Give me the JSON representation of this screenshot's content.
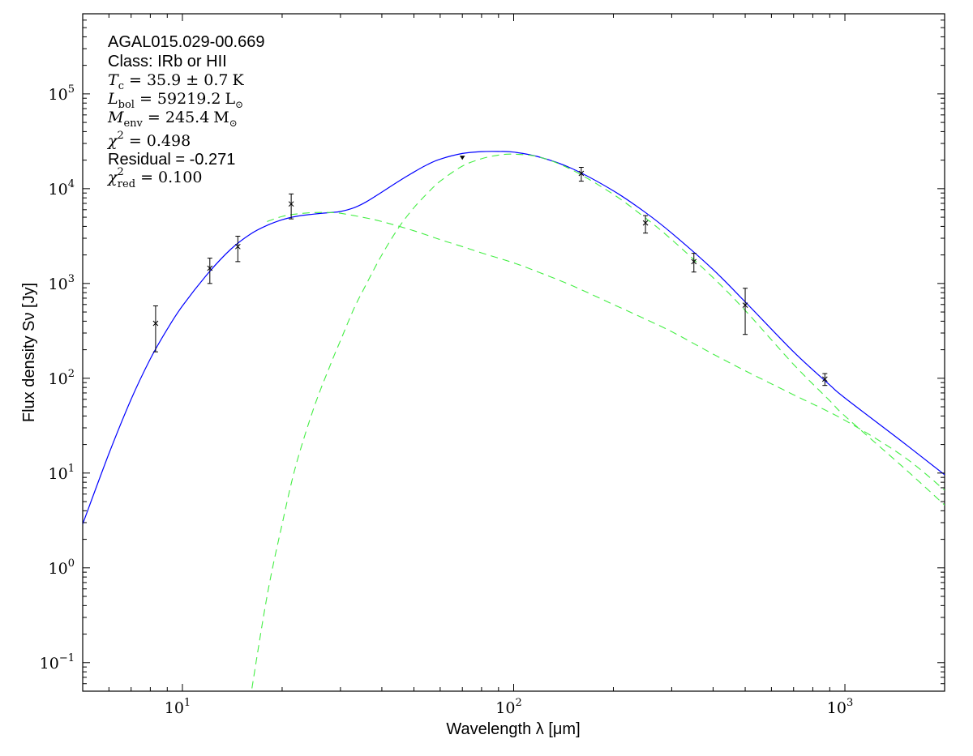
{
  "chart_data": {
    "type": "line",
    "xlabel": "Wavelength λ [μm]",
    "ylabel": "Flux density Sν [Jy]",
    "xscale": "log",
    "yscale": "log",
    "xlim": [
      5,
      2000
    ],
    "ylim": [
      0.05,
      700000
    ],
    "grid": false,
    "x_ticks": [
      {
        "value": 10,
        "base": "10",
        "exp": "1"
      },
      {
        "value": 100,
        "base": "10",
        "exp": "2"
      },
      {
        "value": 1000,
        "base": "10",
        "exp": "3"
      }
    ],
    "y_ticks": [
      {
        "value": 0.1,
        "base": "10",
        "exp": "−1"
      },
      {
        "value": 1,
        "base": "10",
        "exp": "0"
      },
      {
        "value": 10,
        "base": "10",
        "exp": "1"
      },
      {
        "value": 100,
        "base": "10",
        "exp": "2"
      },
      {
        "value": 1000,
        "base": "10",
        "exp": "3"
      },
      {
        "value": 10000,
        "base": "10",
        "exp": "4"
      },
      {
        "value": 100000,
        "base": "10",
        "exp": "5"
      }
    ],
    "annotations": {
      "source": "AGAL015.029-00.669",
      "class": "Class: IRb or HII",
      "tc": {
        "sym": "T",
        "sub": "c",
        "rel": " = 35.9 ± 0.7",
        "unit": "K"
      },
      "lbol": {
        "sym": "L",
        "sub": "bol",
        "rel": " = 59219.2",
        "unit": "L",
        "unit_sub": "⊙"
      },
      "menv": {
        "sym": "M",
        "sub": "env",
        "rel": " = 245.4",
        "unit": "M",
        "unit_sub": "⊙"
      },
      "chi2": {
        "sym": "χ",
        "sup": "2",
        "rel": " = 0.498"
      },
      "residual": "Residual = -0.271",
      "chi2red": {
        "sym": "χ",
        "sup": "2",
        "sub": "red",
        "rel": " = 0.100"
      }
    },
    "series": [
      {
        "style": "solid",
        "color": "#0000ff",
        "x": [
          5,
          6,
          7,
          8,
          9,
          10,
          12,
          14,
          16,
          18,
          20,
          22,
          25,
          28,
          30,
          33,
          36,
          40,
          45,
          50,
          55,
          60,
          70,
          80,
          90,
          100,
          120,
          150,
          200,
          250,
          300,
          400,
          500,
          700,
          900,
          1000,
          1500,
          2000
        ],
        "y": [
          2.9,
          16,
          60,
          160,
          330,
          580,
          1300,
          2300,
          3300,
          4100,
          4700,
          5100,
          5400,
          5600,
          5750,
          6300,
          7300,
          9200,
          12000,
          15000,
          18000,
          20500,
          23500,
          24600,
          24700,
          24300,
          21500,
          16300,
          9500,
          5600,
          3400,
          1400,
          640,
          190,
          85,
          62,
          21,
          9.6
        ]
      },
      {
        "style": "dashed",
        "color": "#44ee44",
        "x": [
          16,
          18,
          20,
          22,
          25,
          28,
          30,
          33,
          36,
          40,
          45,
          50,
          55,
          60,
          70,
          80,
          90,
          100,
          120,
          150,
          200,
          250,
          300,
          400,
          500,
          700,
          900,
          1000,
          1500,
          2000
        ],
        "y": [
          0.04,
          0.5,
          2.9,
          12,
          50,
          140,
          250,
          550,
          1000,
          2000,
          3900,
          6300,
          9000,
          12000,
          17300,
          20700,
          22600,
          23100,
          21500,
          15800,
          8700,
          4900,
          2900,
          1150,
          520,
          140,
          58,
          40,
          11.5,
          4.6
        ]
      },
      {
        "style": "dashed",
        "color": "#44ee44",
        "x": [
          18,
          20,
          22,
          25,
          28,
          30,
          35,
          40,
          50,
          60,
          70,
          80,
          100,
          120,
          150,
          200,
          250,
          300,
          400,
          500,
          700,
          1000,
          1500,
          2000
        ],
        "y": [
          4500,
          5100,
          5400,
          5600,
          5600,
          5500,
          5000,
          4500,
          3600,
          2900,
          2450,
          2100,
          1650,
          1300,
          950,
          600,
          420,
          310,
          180,
          120,
          67,
          36,
          15,
          6.6
        ]
      }
    ],
    "points": [
      {
        "x": 8.3,
        "y": 380,
        "lo": 190,
        "hi": 580,
        "type": "x"
      },
      {
        "x": 12.1,
        "y": 1450,
        "lo": 1000,
        "hi": 1850,
        "type": "x"
      },
      {
        "x": 14.7,
        "y": 2450,
        "lo": 1700,
        "hi": 3150,
        "type": "x"
      },
      {
        "x": 21.3,
        "y": 6900,
        "lo": 4800,
        "hi": 8800,
        "type": "x"
      },
      {
        "x": 70,
        "y": 20500,
        "lo": null,
        "hi": 22000,
        "type": "upper"
      },
      {
        "x": 160,
        "y": 14500,
        "lo": 12000,
        "hi": 16800,
        "type": "x"
      },
      {
        "x": 250,
        "y": 4350,
        "lo": 3400,
        "hi": 5200,
        "type": "x"
      },
      {
        "x": 350,
        "y": 1700,
        "lo": 1320,
        "hi": 2080,
        "type": "x"
      },
      {
        "x": 500,
        "y": 590,
        "lo": 290,
        "hi": 890,
        "type": "x"
      },
      {
        "x": 870,
        "y": 98,
        "lo": 84,
        "hi": 112,
        "type": "x"
      }
    ]
  }
}
